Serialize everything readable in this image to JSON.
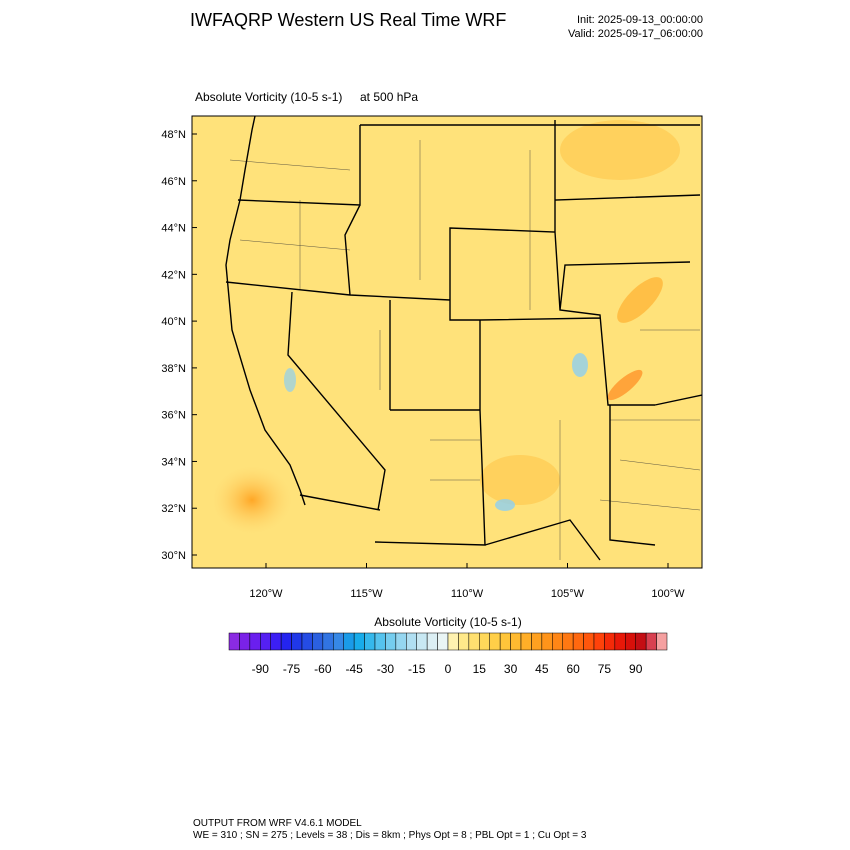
{
  "header": {
    "title": "IWFAQRP Western US Real Time WRF",
    "init": "Init: 2025-09-13_00:00:00",
    "valid": "Valid: 2025-09-17_06:00:00"
  },
  "map": {
    "field_label": "Absolute Vorticity   (10-5 s-1)",
    "level": "at   500 hPa",
    "lat_labels": [
      "48°N",
      "46°N",
      "44°N",
      "42°N",
      "40°N",
      "38°N",
      "36°N",
      "34°N",
      "32°N",
      "30°N"
    ],
    "lon_labels": [
      "120°W",
      "115°W",
      "110°W",
      "105°W",
      "100°W"
    ]
  },
  "colorbar": {
    "title": "Absolute Vorticity  (10-5 s-1)",
    "lim": [
      -105,
      105
    ],
    "ticks": [
      -90,
      -75,
      -60,
      -45,
      -30,
      -15,
      0,
      15,
      30,
      45,
      60,
      75,
      90
    ],
    "colors": [
      "#8a2be2",
      "#7a22e8",
      "#6a1fef",
      "#5520f2",
      "#3c1ff5",
      "#2424f0",
      "#2038e8",
      "#254ce4",
      "#2b60e0",
      "#3174e2",
      "#3688e6",
      "#1a9be8",
      "#18acea",
      "#35b8ec",
      "#55c3ee",
      "#75cdef",
      "#95d6f0",
      "#b0dff2",
      "#c8e8f3",
      "#dceff4",
      "#eaf5f5",
      "#fff2b0",
      "#ffe98a",
      "#ffe070",
      "#ffd85a",
      "#ffcf48",
      "#ffc53a",
      "#ffba30",
      "#ffae28",
      "#ffa120",
      "#ff941a",
      "#ff8616",
      "#ff7812",
      "#ff680f",
      "#ff560c",
      "#ff420a",
      "#f52a08",
      "#e81808",
      "#d8100a",
      "#c40e14",
      "#d84050",
      "#f5a0a0"
    ]
  },
  "footer": {
    "line1": "OUTPUT FROM WRF V4.6.1 MODEL",
    "line2": "WE = 310 ; SN = 275 ; Levels = 38 ; Dis = 8km ; Phys Opt = 8 ; PBL Opt = 1 ; Cu Opt = 3"
  }
}
